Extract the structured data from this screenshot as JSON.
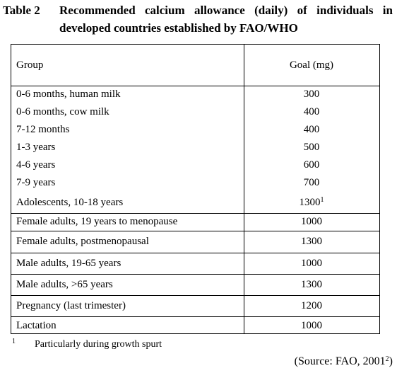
{
  "caption": {
    "label": "Table 2",
    "line1": "Recommended calcium allowance (daily) of individuals in",
    "line2": "developed countries established by FAO/WHO"
  },
  "table": {
    "headers": {
      "group": "Group",
      "goal": "Goal (mg)"
    },
    "rows": [
      {
        "group": "0-6 months, human milk",
        "goal": "300",
        "sup": ""
      },
      {
        "group": "0-6 months, cow milk",
        "goal": "400",
        "sup": ""
      },
      {
        "group": "7-12 months",
        "goal": "400",
        "sup": ""
      },
      {
        "group": "1-3 years",
        "goal": "500",
        "sup": ""
      },
      {
        "group": "4-6 years",
        "goal": "600",
        "sup": ""
      },
      {
        "group": "7-9 years",
        "goal": "700",
        "sup": ""
      },
      {
        "group": "Adolescents, 10-18 years",
        "goal": "1300",
        "sup": "1"
      },
      {
        "group": "Female adults, 19 years to menopause",
        "goal": "1000",
        "sup": ""
      },
      {
        "group": "Female adults, postmenopausal",
        "goal": "1300",
        "sup": ""
      },
      {
        "group": "Male adults, 19-65 years",
        "goal": "1000",
        "sup": ""
      },
      {
        "group": "Male adults, >65 years",
        "goal": "1300",
        "sup": ""
      },
      {
        "group": "Pregnancy (last trimester)",
        "goal": "1200",
        "sup": ""
      },
      {
        "group": "Lactation",
        "goal": "1000",
        "sup": ""
      }
    ]
  },
  "footnote": {
    "mark": "1",
    "text": "Particularly during growth spurt"
  },
  "source": {
    "prefix": "(Source: FAO, 2001",
    "sup": "2",
    "suffix": ")"
  }
}
